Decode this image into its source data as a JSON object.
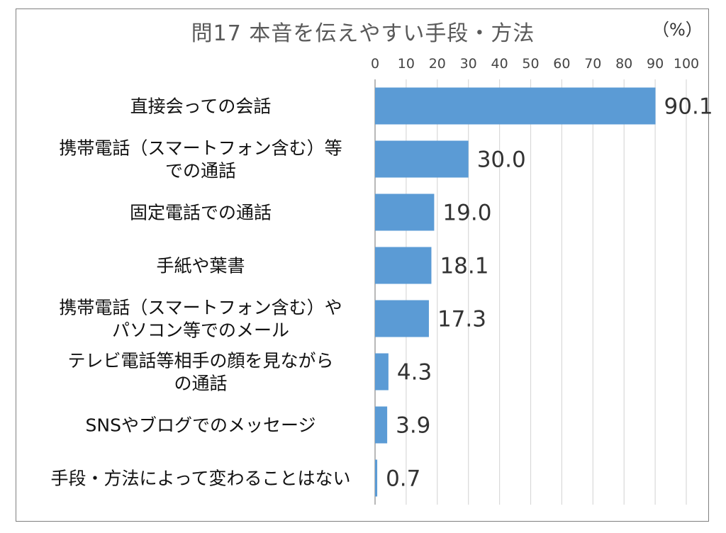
{
  "chart_data": {
    "type": "bar",
    "orientation": "horizontal",
    "title": "問17 本音を伝えやすい手段・方法",
    "unit": "（%）",
    "xlim": [
      0,
      100
    ],
    "ticks": [
      "0",
      "10",
      "20",
      "30",
      "40",
      "50",
      "60",
      "70",
      "80",
      "90",
      "100"
    ],
    "grid": true,
    "bar_color": "#5B9BD5",
    "categories": [
      [
        "直接会っての会話"
      ],
      [
        "携帯電話（スマートフォン含む）等",
        "での通話"
      ],
      [
        "固定電話での通話"
      ],
      [
        "手紙や葉書"
      ],
      [
        "携帯電話（スマートフォン含む）や",
        "パソコン等でのメール"
      ],
      [
        "テレビ電話等相手の顔を見ながら",
        "の通話"
      ],
      [
        "SNSやブログでのメッセージ"
      ],
      [
        "手段・方法によって変わることはない"
      ]
    ],
    "values": [
      90.1,
      30.0,
      19.0,
      18.1,
      17.3,
      4.3,
      3.9,
      0.7
    ],
    "value_labels": [
      "90.1",
      "30.0",
      "19.0",
      "18.1",
      "17.3",
      "4.3",
      "3.9",
      "0.7"
    ]
  }
}
